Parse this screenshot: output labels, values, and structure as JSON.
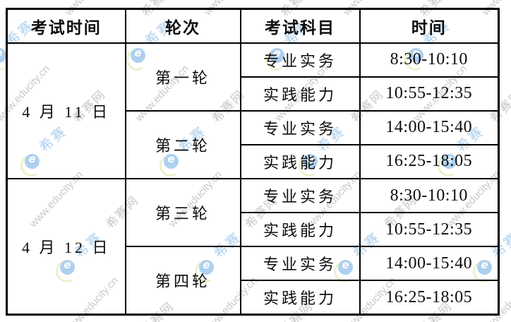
{
  "table": {
    "columns": [
      {
        "label": "考试时间"
      },
      {
        "label": "轮次"
      },
      {
        "label": "考试科目"
      },
      {
        "label": "时间"
      }
    ],
    "day_groups": [
      {
        "date": "4 月 11 日",
        "rounds": [
          {
            "name": "第一轮",
            "sessions": [
              {
                "subject": "专业实务",
                "time": "8:30-10:10"
              },
              {
                "subject": "实践能力",
                "time": "10:55-12:35"
              }
            ]
          },
          {
            "name": "第二轮",
            "sessions": [
              {
                "subject": "专业实务",
                "time": "14:00-15:40"
              },
              {
                "subject": "实践能力",
                "time": "16:25-18:05"
              }
            ]
          }
        ]
      },
      {
        "date": "4 月 12 日",
        "rounds": [
          {
            "name": "第三轮",
            "sessions": [
              {
                "subject": "专业实务",
                "time": "8:30-10:10"
              },
              {
                "subject": "实践能力",
                "time": "10:55-12:35"
              }
            ]
          },
          {
            "name": "第四轮",
            "sessions": [
              {
                "subject": "专业实务",
                "time": "14:00-15:40"
              },
              {
                "subject": "实践能力",
                "time": "16:25-18:05"
              }
            ]
          }
        ]
      }
    ]
  },
  "watermark": {
    "site_text": "www.educity.cn",
    "brand_text": "希赛网",
    "logo_text": "希赛",
    "logo_letter": "e",
    "colors": {
      "blue": "#aed0ee",
      "gray": "#c9c9c9",
      "crescent": "#e9f2cc"
    }
  },
  "page": {
    "border_color": "#000000",
    "background": "#ffffff"
  }
}
